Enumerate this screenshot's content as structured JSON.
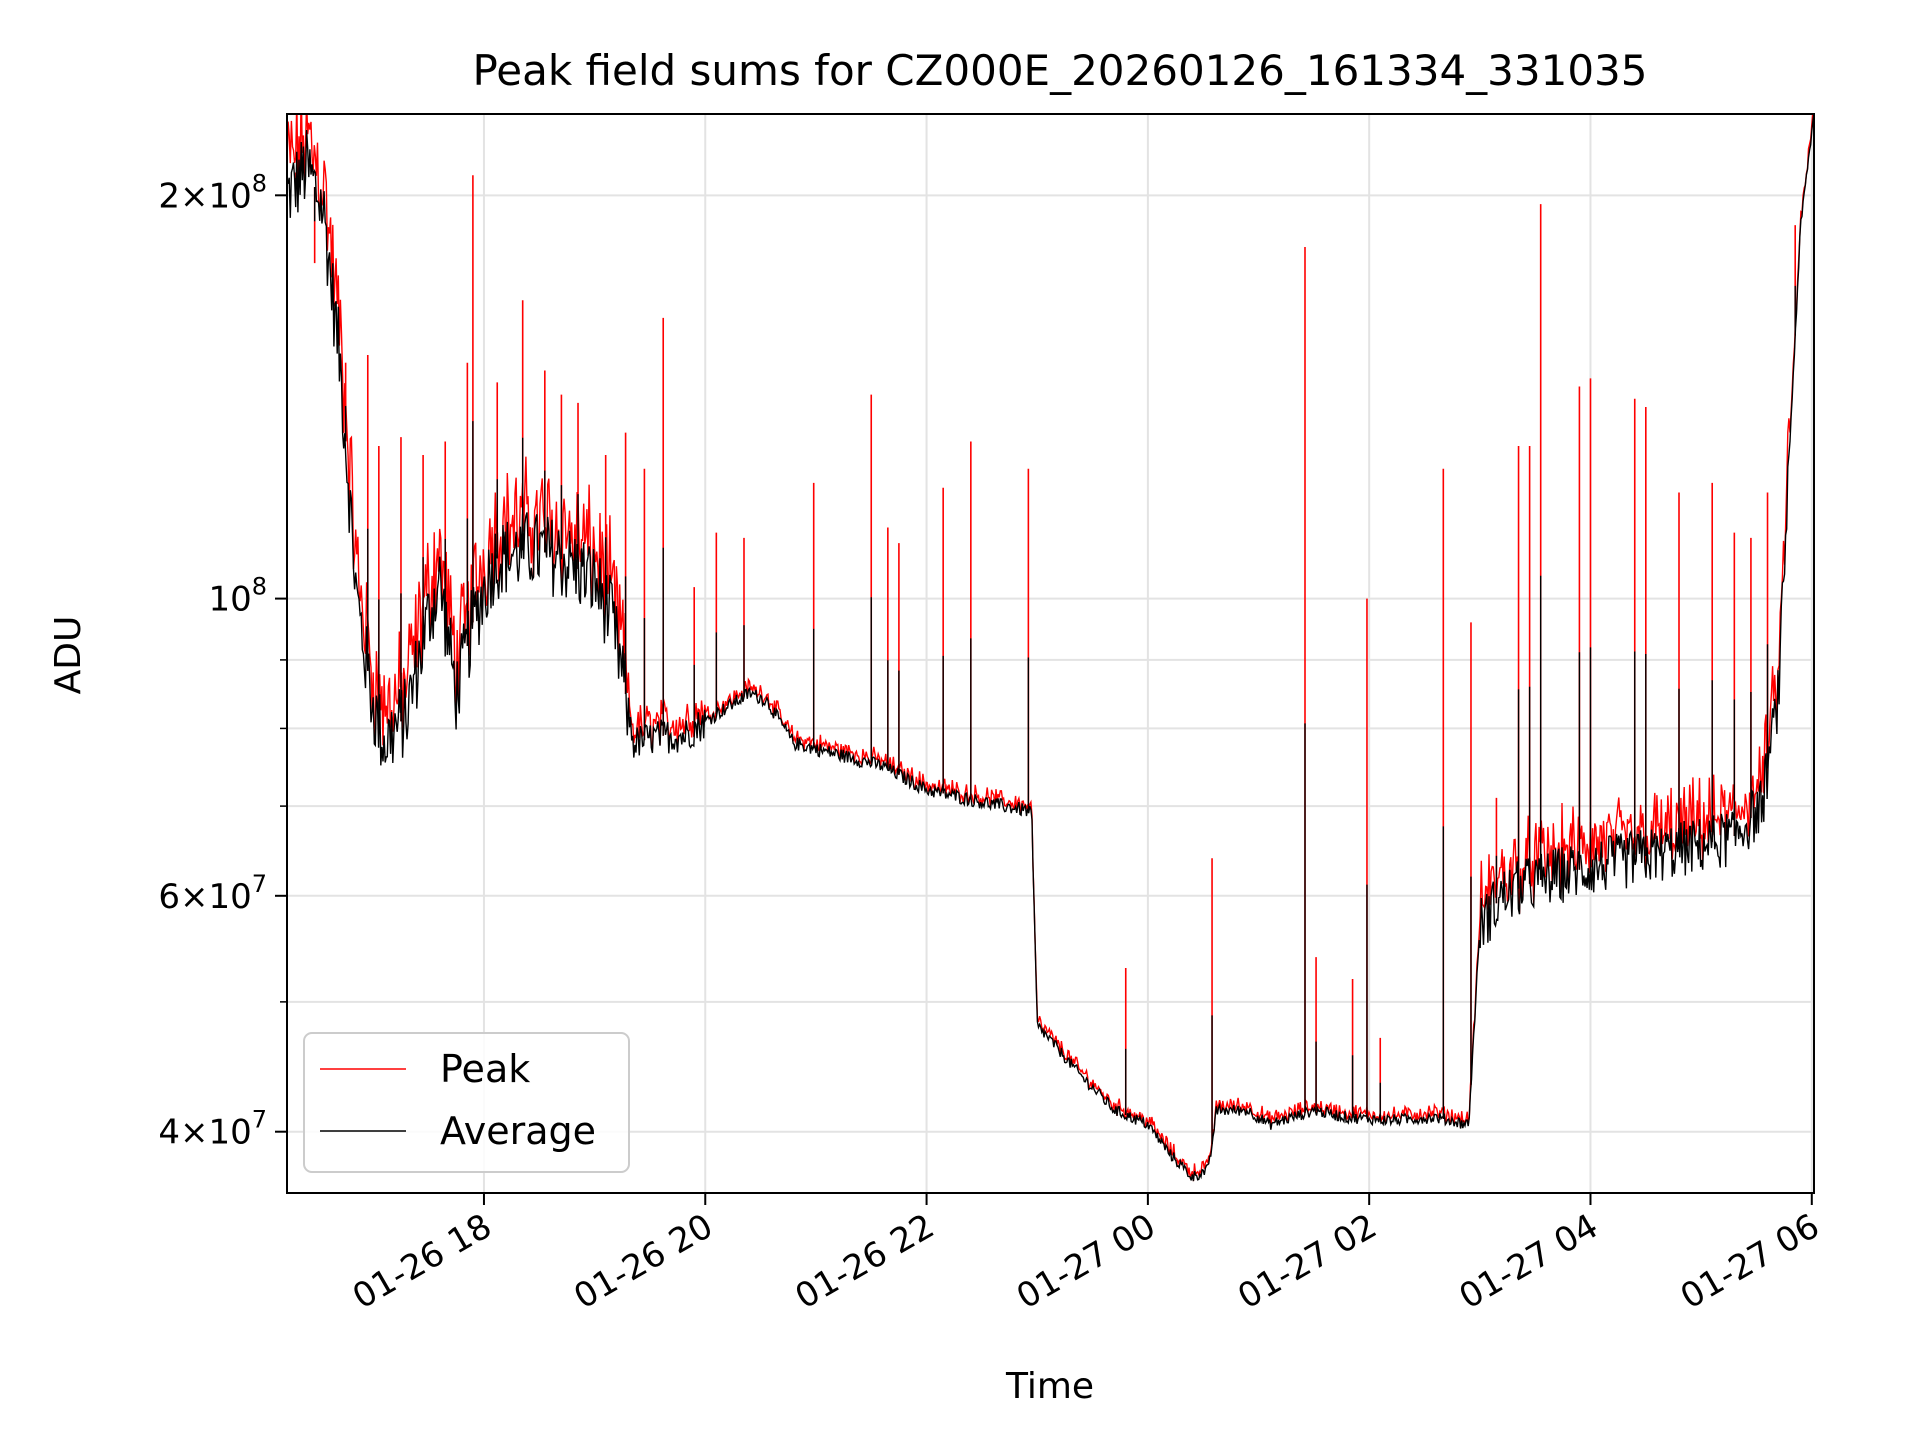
{
  "chart_data": {
    "type": "line",
    "title": "Peak field sums for CZ000E_20260126_161334_331035",
    "xlabel": "Time",
    "ylabel": "ADU",
    "yscale": "log",
    "grid": true,
    "legend_position": "lower-left",
    "x_unit": "hours since 2026-01-26 00:00",
    "xlim": [
      16.22,
      30.02
    ],
    "ylim": [
      36000000,
      230000000
    ],
    "x_ticks": [
      {
        "value": 18,
        "label": "01-26 18"
      },
      {
        "value": 20,
        "label": "01-26 20"
      },
      {
        "value": 22,
        "label": "01-26 22"
      },
      {
        "value": 24,
        "label": "01-27 00"
      },
      {
        "value": 26,
        "label": "01-27 02"
      },
      {
        "value": 28,
        "label": "01-27 04"
      },
      {
        "value": 30,
        "label": "01-27 06"
      }
    ],
    "y_ticks": [
      {
        "value": 40000000,
        "mantissa": "4",
        "exponent": "7"
      },
      {
        "value": 60000000,
        "mantissa": "6",
        "exponent": "7"
      },
      {
        "value": 100000000,
        "mantissa": "",
        "exponent": "8"
      },
      {
        "value": 200000000,
        "mantissa": "2",
        "exponent": "8"
      }
    ],
    "y_minor_ticks": [
      50000000,
      70000000,
      80000000,
      90000000
    ],
    "y_tick_base": "10",
    "y_tick_times": "×",
    "series": [
      {
        "name": "Peak",
        "color": "#ff0000"
      },
      {
        "name": "Average",
        "color": "#000000"
      }
    ],
    "average_baseline": [
      [
        16.22,
        200000000
      ],
      [
        16.4,
        210000000
      ],
      [
        16.55,
        195000000
      ],
      [
        16.7,
        150000000
      ],
      [
        16.85,
        100000000
      ],
      [
        17.0,
        83000000
      ],
      [
        17.1,
        78000000
      ],
      [
        17.3,
        82000000
      ],
      [
        17.5,
        97000000
      ],
      [
        17.6,
        103000000
      ],
      [
        17.75,
        85000000
      ],
      [
        17.9,
        96000000
      ],
      [
        18.1,
        107000000
      ],
      [
        18.4,
        109000000
      ],
      [
        18.6,
        108000000
      ],
      [
        18.8,
        106000000
      ],
      [
        19.0,
        103000000
      ],
      [
        19.15,
        97000000
      ],
      [
        19.25,
        88000000
      ],
      [
        19.35,
        78000000
      ],
      [
        19.6,
        79000000
      ],
      [
        19.8,
        79000000
      ],
      [
        20.1,
        82000000
      ],
      [
        20.4,
        85000000
      ],
      [
        20.55,
        84000000
      ],
      [
        20.8,
        78000000
      ],
      [
        21.2,
        76500000
      ],
      [
        21.6,
        75000000
      ],
      [
        22.0,
        72000000
      ],
      [
        22.5,
        70500000
      ],
      [
        22.9,
        69500000
      ],
      [
        22.95,
        69000000
      ],
      [
        23.0,
        48000000
      ],
      [
        23.1,
        47000000
      ],
      [
        23.4,
        44000000
      ],
      [
        23.7,
        41500000
      ],
      [
        24.0,
        40500000
      ],
      [
        24.2,
        38500000
      ],
      [
        24.4,
        37000000
      ],
      [
        24.55,
        37500000
      ],
      [
        24.62,
        41500000
      ],
      [
        24.9,
        41500000
      ],
      [
        25.1,
        40500000
      ],
      [
        25.5,
        41500000
      ],
      [
        25.8,
        41000000
      ],
      [
        26.2,
        40800000
      ],
      [
        26.6,
        41000000
      ],
      [
        26.9,
        40500000
      ],
      [
        27.0,
        57000000
      ],
      [
        27.2,
        60000000
      ],
      [
        27.5,
        61500000
      ],
      [
        27.8,
        62500000
      ],
      [
        28.2,
        63500000
      ],
      [
        28.6,
        64500000
      ],
      [
        29.0,
        65500000
      ],
      [
        29.3,
        66500000
      ],
      [
        29.55,
        70000000
      ],
      [
        29.7,
        85000000
      ],
      [
        29.8,
        130000000
      ],
      [
        29.9,
        190000000
      ],
      [
        30.02,
        230000000
      ]
    ],
    "peak_spikes": [
      [
        16.3,
        208000000
      ],
      [
        16.47,
        178000000
      ],
      [
        16.75,
        150000000
      ],
      [
        16.95,
        152000000
      ],
      [
        17.05,
        130000000
      ],
      [
        17.25,
        132000000
      ],
      [
        17.45,
        128000000
      ],
      [
        17.65,
        131000000
      ],
      [
        17.85,
        150000000
      ],
      [
        17.9,
        207000000
      ],
      [
        18.12,
        145000000
      ],
      [
        18.35,
        167000000
      ],
      [
        18.55,
        148000000
      ],
      [
        18.7,
        142000000
      ],
      [
        18.85,
        140000000
      ],
      [
        19.1,
        128000000
      ],
      [
        19.28,
        133000000
      ],
      [
        19.45,
        125000000
      ],
      [
        19.62,
        162000000
      ],
      [
        19.9,
        102000000
      ],
      [
        20.1,
        112000000
      ],
      [
        20.35,
        111000000
      ],
      [
        20.98,
        122000000
      ],
      [
        21.5,
        142000000
      ],
      [
        21.65,
        113000000
      ],
      [
        21.75,
        110000000
      ],
      [
        22.15,
        121000000
      ],
      [
        22.4,
        131000000
      ],
      [
        22.92,
        125000000
      ],
      [
        23.8,
        53000000
      ],
      [
        24.58,
        64000000
      ],
      [
        25.42,
        183000000
      ],
      [
        25.52,
        54000000
      ],
      [
        25.85,
        52000000
      ],
      [
        25.98,
        100000000
      ],
      [
        26.1,
        47000000
      ],
      [
        26.67,
        125000000
      ],
      [
        26.92,
        96000000
      ],
      [
        27.15,
        71000000
      ],
      [
        27.35,
        130000000
      ],
      [
        27.45,
        130000000
      ],
      [
        27.55,
        197000000
      ],
      [
        27.9,
        144000000
      ],
      [
        28.0,
        146000000
      ],
      [
        28.4,
        141000000
      ],
      [
        28.5,
        139000000
      ],
      [
        28.8,
        120000000
      ],
      [
        29.1,
        122000000
      ],
      [
        29.3,
        112000000
      ],
      [
        29.45,
        111000000
      ],
      [
        29.6,
        120000000
      ],
      [
        29.85,
        190000000
      ]
    ]
  }
}
